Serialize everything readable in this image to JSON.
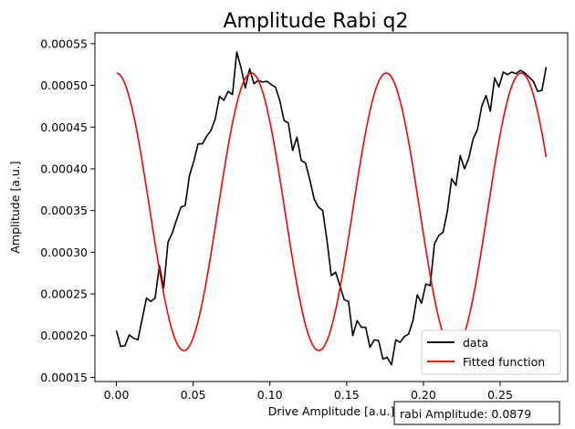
{
  "chart_data": {
    "type": "line",
    "title": "Amplitude Rabi q2",
    "xlabel": "Drive Amplitude [a.u.]",
    "ylabel": "Amplitude [a.u.]",
    "xlim": [
      -0.014,
      0.294
    ],
    "ylim": [
      0.000145,
      0.000563
    ],
    "xticks": [
      0.0,
      0.05,
      0.1,
      0.15,
      0.2,
      0.25
    ],
    "xtick_labels": [
      "0.00",
      "0.05",
      "0.10",
      "0.15",
      "0.20",
      "0.25"
    ],
    "yticks": [
      0.00015,
      0.0002,
      0.00025,
      0.0003,
      0.00035,
      0.0004,
      0.00045,
      0.0005,
      0.00055
    ],
    "ytick_labels": [
      "0.00015",
      "0.00020",
      "0.00025",
      "0.00030",
      "0.00035",
      "0.00040",
      "0.00045",
      "0.00050",
      "0.00055"
    ],
    "grid": false,
    "legend_position": "lower-right",
    "series": [
      {
        "name": "data",
        "color": "#000000",
        "x": [
          0.0,
          0.0028,
          0.0056,
          0.0084,
          0.0112,
          0.014,
          0.0168,
          0.0196,
          0.0224,
          0.0252,
          0.028,
          0.0308,
          0.0336,
          0.0364,
          0.0392,
          0.042,
          0.0448,
          0.0476,
          0.0504,
          0.0532,
          0.056,
          0.0588,
          0.0616,
          0.0644,
          0.0672,
          0.07,
          0.0728,
          0.0756,
          0.0784,
          0.0812,
          0.084,
          0.0868,
          0.0896,
          0.0924,
          0.0952,
          0.098,
          0.1008,
          0.1036,
          0.1064,
          0.1092,
          0.112,
          0.1148,
          0.1176,
          0.1204,
          0.1232,
          0.126,
          0.1288,
          0.1316,
          0.1344,
          0.1372,
          0.14,
          0.1428,
          0.1456,
          0.1484,
          0.1512,
          0.154,
          0.1568,
          0.1596,
          0.1624,
          0.1652,
          0.168,
          0.1708,
          0.1736,
          0.1764,
          0.1792,
          0.182,
          0.1848,
          0.1876,
          0.1904,
          0.1932,
          0.196,
          0.1988,
          0.2016,
          0.2044,
          0.2072,
          0.21,
          0.2128,
          0.2156,
          0.2184,
          0.2212,
          0.224,
          0.2268,
          0.2296,
          0.2324,
          0.2352,
          0.238,
          0.2408,
          0.2436,
          0.2464,
          0.2492,
          0.252,
          0.2548,
          0.2576,
          0.2604,
          0.2632,
          0.266,
          0.2688,
          0.2716,
          0.2744,
          0.2772,
          0.28
        ],
        "y": [
          0.000206,
          0.000187,
          0.000188,
          0.000201,
          0.000197,
          0.000195,
          0.00022,
          0.000245,
          0.000241,
          0.000245,
          0.000284,
          0.000257,
          0.000312,
          0.000323,
          0.000339,
          0.000354,
          0.000356,
          0.000392,
          0.000409,
          0.00043,
          0.00043,
          0.000439,
          0.000446,
          0.00046,
          0.000487,
          0.000482,
          0.000493,
          0.000489,
          0.00054,
          0.000521,
          0.000497,
          0.00052,
          0.000502,
          0.000506,
          0.000504,
          0.000505,
          0.000501,
          0.000498,
          0.000482,
          0.000458,
          0.000455,
          0.000422,
          0.000438,
          0.00041,
          0.000407,
          0.000387,
          0.000364,
          0.000354,
          0.00035,
          0.000314,
          0.000272,
          0.000276,
          0.00026,
          0.000243,
          0.000241,
          0.0002,
          0.000218,
          0.00021,
          0.00021,
          0.000186,
          0.000195,
          0.000194,
          0.000172,
          0.000174,
          0.000165,
          0.000195,
          0.000192,
          0.000199,
          0.000202,
          0.000218,
          0.000249,
          0.000239,
          0.000262,
          0.00026,
          0.00031,
          0.00032,
          0.000324,
          0.000349,
          0.000388,
          0.00038,
          0.000416,
          0.0004,
          0.000413,
          0.000436,
          0.000447,
          0.000475,
          0.000488,
          0.000469,
          0.000509,
          0.000498,
          0.000516,
          0.000513,
          0.000516,
          0.000514,
          0.000518,
          0.000515,
          0.00051,
          0.000505,
          0.000493,
          0.000494,
          0.000522
        ]
      },
      {
        "name": "Fitted function",
        "color": "#ff0000",
        "function": {
          "kind": "cosine",
          "offset": 0.0003485,
          "amplitude": 0.0001665,
          "period": 0.0879,
          "phase_shift": 0.0879,
          "x_range": [
            0.0,
            0.28
          ]
        }
      }
    ],
    "annotation": {
      "text": "rabi Amplitude: 0.0879"
    }
  }
}
